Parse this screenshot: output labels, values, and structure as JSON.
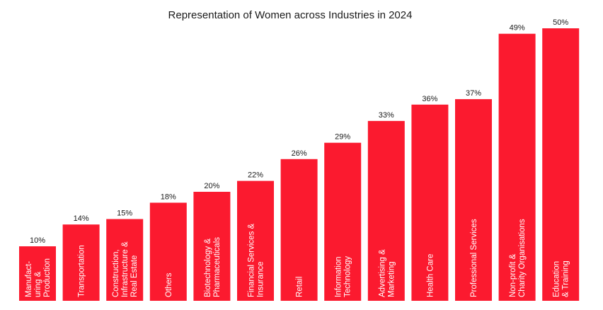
{
  "chart_data": {
    "type": "bar",
    "title": "Representation of Women across Industries in 2024",
    "xlabel": "",
    "ylabel": "",
    "ylim": [
      0,
      50
    ],
    "grid": false,
    "legend": "none",
    "bar_color": "#fb1a2f",
    "categories": [
      [
        "Manufact-",
        "uring &",
        "Production"
      ],
      [
        "Transportation"
      ],
      [
        "Construction,",
        "Infrastructure &",
        "Real Estate"
      ],
      [
        "Others"
      ],
      [
        "Biotechnology &",
        "Pharmaceuticals"
      ],
      [
        "Financial Services &",
        "Insurance"
      ],
      [
        "Retail"
      ],
      [
        "Information",
        "Technology"
      ],
      [
        "Advertising &",
        "Marketing"
      ],
      [
        "Health Care"
      ],
      [
        "Professional Services"
      ],
      [
        "Non-profit &",
        "Charity Organisations"
      ],
      [
        "Education",
        "& Training"
      ]
    ],
    "values": [
      10,
      14,
      15,
      18,
      20,
      22,
      26,
      29,
      33,
      36,
      37,
      49,
      50
    ],
    "value_labels": [
      "10%",
      "14%",
      "15%",
      "18%",
      "20%",
      "22%",
      "26%",
      "29%",
      "33%",
      "36%",
      "37%",
      "49%",
      "50%"
    ]
  }
}
